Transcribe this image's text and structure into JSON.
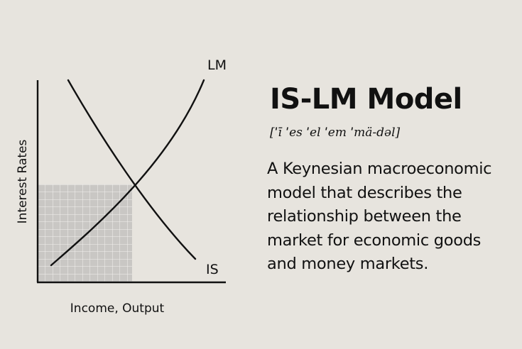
{
  "title": "IS-LM Model",
  "pronunciation": "[ˈī ˈes ˈel ˈem ˈmä-dəl]",
  "definition_lines": [
    "A Keynesian macroeconomic",
    "model that describes the",
    "relationship between the",
    "market for economic goods",
    "and money markets."
  ],
  "diagram": {
    "y_axis_label": "Interest Rates",
    "x_axis_label": "Income, Output",
    "curves": [
      {
        "label": "LM"
      },
      {
        "label": "IS"
      }
    ]
  },
  "colors": {
    "background": "#e7e4de",
    "ink": "#111111",
    "grid_fill": "#c9c7c4",
    "grid_line": "#f2f1ee"
  }
}
